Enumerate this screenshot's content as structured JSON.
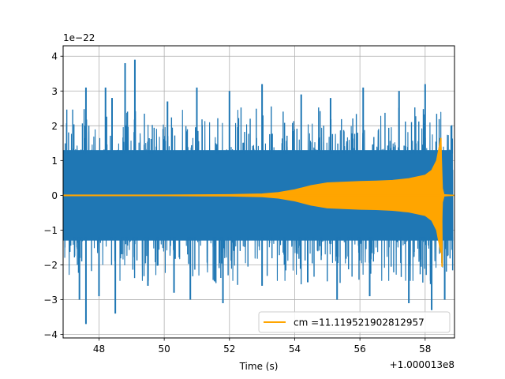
{
  "chart_data": {
    "type": "line",
    "title": "",
    "xlabel": "Time (s)",
    "ylabel": "",
    "x_offset_label": "+1.000013e8",
    "y_scale_label": "1e−22",
    "xlim": [
      46.9,
      58.9
    ],
    "ylim": [
      -4.1,
      4.3
    ],
    "x_ticks": [
      48,
      50,
      52,
      54,
      56,
      58
    ],
    "x_tick_labels": [
      "48",
      "50",
      "52",
      "54",
      "56",
      "58"
    ],
    "y_ticks": [
      -4,
      -3,
      -2,
      -1,
      0,
      1,
      2,
      3,
      4
    ],
    "y_tick_labels": [
      "−4",
      "−3",
      "−2",
      "−1",
      "0",
      "1",
      "2",
      "3",
      "4"
    ],
    "grid": true,
    "legend_position": "lower-right",
    "series": [
      {
        "name": "",
        "color": "#1f77b4",
        "x_range": [
          46.9,
          58.85
        ],
        "typical_amplitude": 1.4,
        "peak_max": [
          [
            47.6,
            3.1
          ],
          [
            48.2,
            3.1
          ],
          [
            48.4,
            2.8
          ],
          [
            48.8,
            3.8
          ],
          [
            49.1,
            3.9
          ],
          [
            50.1,
            2.7
          ],
          [
            51.0,
            3.1
          ],
          [
            52.0,
            3.0
          ],
          [
            53.0,
            3.2
          ],
          [
            54.2,
            2.9
          ],
          [
            55.1,
            2.8
          ],
          [
            56.1,
            3.1
          ],
          [
            57.2,
            3.0
          ],
          [
            58.0,
            3.2
          ],
          [
            58.8,
            2.0
          ]
        ],
        "peak_min": [
          [
            47.4,
            -3.0
          ],
          [
            47.6,
            -3.7
          ],
          [
            48.0,
            -2.9
          ],
          [
            48.5,
            -3.4
          ],
          [
            49.5,
            -2.6
          ],
          [
            50.3,
            -2.8
          ],
          [
            50.8,
            -3.0
          ],
          [
            51.8,
            -3.1
          ],
          [
            53.0,
            -2.6
          ],
          [
            54.4,
            -2.5
          ],
          [
            55.3,
            -3.0
          ],
          [
            56.3,
            -2.9
          ],
          [
            57.5,
            -3.1
          ],
          [
            58.2,
            -3.3
          ],
          [
            58.6,
            -3.0
          ]
        ]
      },
      {
        "name": "cm =11.119521902812957",
        "color": "#ffa500",
        "envelope_x": [
          46.9,
          50.0,
          52.0,
          53.0,
          53.5,
          54.0,
          54.5,
          55.0,
          55.5,
          56.0,
          56.5,
          57.0,
          57.5,
          58.0,
          58.2,
          58.35,
          58.42,
          58.48,
          58.53,
          58.58,
          58.9
        ],
        "envelope_amplitude": [
          0.01,
          0.01,
          0.02,
          0.04,
          0.08,
          0.16,
          0.28,
          0.36,
          0.38,
          0.4,
          0.41,
          0.43,
          0.48,
          0.58,
          0.72,
          1.0,
          1.35,
          1.65,
          0.2,
          0.02,
          0.0
        ]
      }
    ]
  }
}
